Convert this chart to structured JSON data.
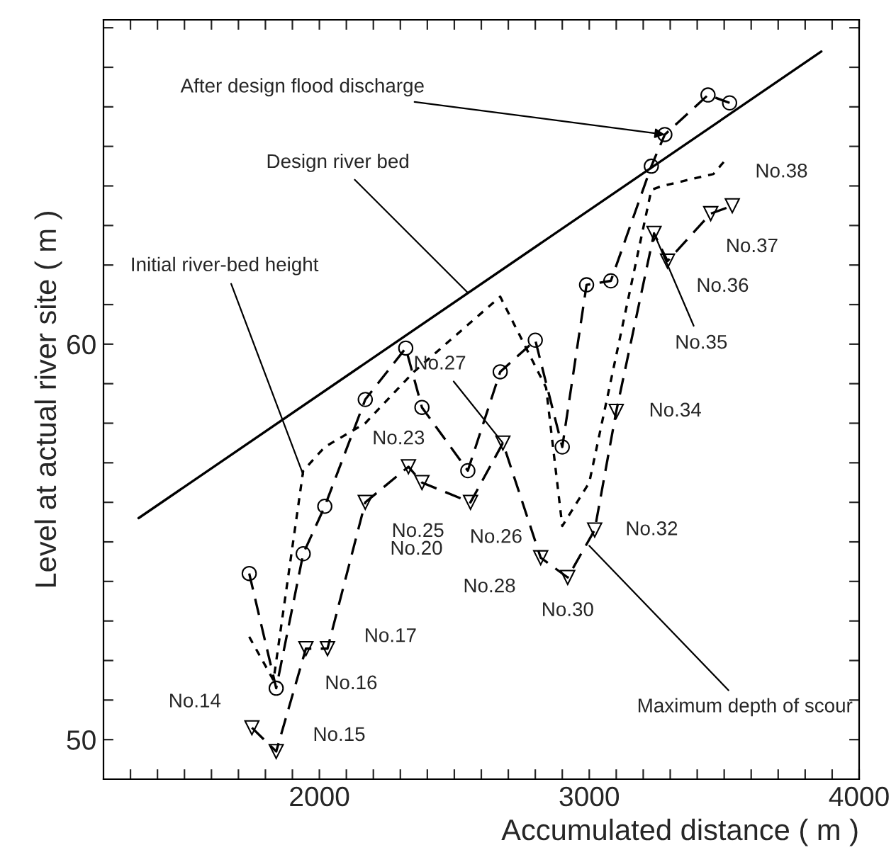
{
  "chart_data": {
    "type": "line",
    "xlabel": "Accumulated distance ( m )",
    "ylabel": "Level at actual river site ( m )",
    "xlim": [
      1200,
      4000
    ],
    "xticks": [
      {
        "value": 1300,
        "label": null
      },
      {
        "value": 1400,
        "label": null
      },
      {
        "value": 1500,
        "label": null
      },
      {
        "value": 1600,
        "label": null
      },
      {
        "value": 1700,
        "label": null
      },
      {
        "value": 1800,
        "label": null
      },
      {
        "value": 1900,
        "label": null
      },
      2000,
      {
        "value": 2100,
        "label": null
      },
      {
        "value": 2200,
        "label": null
      },
      {
        "value": 2300,
        "label": null
      },
      {
        "value": 2400,
        "label": null
      },
      {
        "value": 2500,
        "label": null
      },
      {
        "value": 2600,
        "label": null
      },
      {
        "value": 2700,
        "label": null
      },
      {
        "value": 2800,
        "label": null
      },
      {
        "value": 2900,
        "label": null
      },
      3000,
      {
        "value": 3100,
        "label": null
      },
      {
        "value": 3200,
        "label": null
      },
      {
        "value": 3300,
        "label": null
      },
      {
        "value": 3400,
        "label": null
      },
      {
        "value": 3500,
        "label": null
      },
      {
        "value": 3600,
        "label": null
      },
      {
        "value": 3700,
        "label": null
      },
      {
        "value": 3800,
        "label": null
      },
      {
        "value": 3900,
        "label": null
      },
      4000
    ],
    "ylim": [
      49,
      68.2
    ],
    "yticks": [
      50,
      {
        "value": 51,
        "label": null
      },
      {
        "value": 52,
        "label": null
      },
      {
        "value": 53,
        "label": null
      },
      {
        "value": 54,
        "label": null
      },
      {
        "value": 55,
        "label": null
      },
      {
        "value": 56,
        "label": null
      },
      {
        "value": 57,
        "label": null
      },
      {
        "value": 58,
        "label": null
      },
      {
        "value": 59,
        "label": null
      },
      60,
      {
        "value": 61,
        "label": null
      },
      {
        "value": 62,
        "label": null
      },
      {
        "value": 63,
        "label": null
      },
      {
        "value": 64,
        "label": null
      },
      {
        "value": 65,
        "label": null
      },
      {
        "value": 66,
        "label": null
      },
      {
        "value": 67,
        "label": null
      },
      {
        "value": 68,
        "label": null
      }
    ],
    "grid": false,
    "legend": false,
    "series": [
      {
        "color": "#000000",
        "line_style": "solid",
        "marker": "none",
        "x": [
          1330,
          3860
        ],
        "values": [
          55.6,
          67.4
        ]
      },
      {
        "color": "#000000",
        "line_style": "dashed",
        "marker": "circle",
        "x": [
          1740,
          1840,
          1940,
          2020,
          2170,
          2320,
          2380,
          2550,
          2670,
          2800,
          2900,
          2990,
          3080,
          3230,
          3280,
          3440,
          3520
        ],
        "values": [
          54.2,
          51.3,
          54.7,
          55.9,
          58.6,
          59.9,
          58.4,
          56.8,
          59.3,
          60.1,
          57.4,
          61.5,
          61.6,
          64.5,
          65.3,
          66.3,
          66.1
        ]
      },
      {
        "color": "#000000",
        "line_style": "dotted",
        "marker": "none",
        "x": [
          1740,
          1830,
          1940,
          2020,
          2170,
          2350,
          2670,
          2840,
          2900,
          3000,
          3230,
          3270,
          3460,
          3510
        ],
        "values": [
          52.6,
          51.5,
          56.8,
          57.4,
          58.0,
          59.3,
          61.2,
          58.9,
          55.4,
          56.5,
          63.9,
          64.0,
          64.3,
          64.7
        ]
      },
      {
        "color": "#000000",
        "line_style": "dashed",
        "marker": "triangle",
        "x": [
          1750,
          1840,
          1950,
          2030,
          2170,
          2330,
          2380,
          2560,
          2680,
          2820,
          2920,
          3020,
          3100,
          3240,
          3290,
          3450,
          3530
        ],
        "values": [
          50.3,
          49.7,
          52.3,
          52.3,
          56.0,
          56.9,
          56.5,
          56.0,
          57.5,
          54.6,
          54.1,
          55.3,
          58.3,
          62.8,
          62.1,
          63.3,
          63.5
        ]
      }
    ],
    "annotations": [
      {
        "text": "After design flood discharge",
        "x": 3280,
        "y": 65.3
      },
      {
        "text": "Design river bed",
        "x": 2550,
        "y": 61.3
      },
      {
        "text": "Initial river-bed height",
        "x": 1940,
        "y": 56.7
      },
      {
        "text": "Maximum depth of scour",
        "x": 3000,
        "y": 54.9
      },
      {
        "text": "No.14",
        "x": 1750,
        "y": 50.3
      },
      {
        "text": "No.15",
        "x": 1840,
        "y": 49.7
      },
      {
        "text": "No.16",
        "x": 1950,
        "y": 52.3
      },
      {
        "text": "No.17",
        "x": 2030,
        "y": 52.3
      },
      {
        "text": "No.20",
        "x": 2170,
        "y": 56.0
      },
      {
        "text": "No.23",
        "x": 2330,
        "y": 56.9
      },
      {
        "text": "No.25",
        "x": 2380,
        "y": 56.5
      },
      {
        "text": "No.26",
        "x": 2560,
        "y": 56.0
      },
      {
        "text": "No.27",
        "x": 2680,
        "y": 57.5
      },
      {
        "text": "No.28",
        "x": 2820,
        "y": 54.6
      },
      {
        "text": "No.30",
        "x": 2920,
        "y": 54.1
      },
      {
        "text": "No.32",
        "x": 3020,
        "y": 55.3
      },
      {
        "text": "No.34",
        "x": 3100,
        "y": 58.3
      },
      {
        "text": "No.35",
        "x": 3240,
        "y": 62.8
      },
      {
        "text": "No.36",
        "x": 3290,
        "y": 62.1
      },
      {
        "text": "No.37",
        "x": 3450,
        "y": 63.3
      },
      {
        "text": "No.38",
        "x": 3530,
        "y": 63.5
      }
    ]
  }
}
